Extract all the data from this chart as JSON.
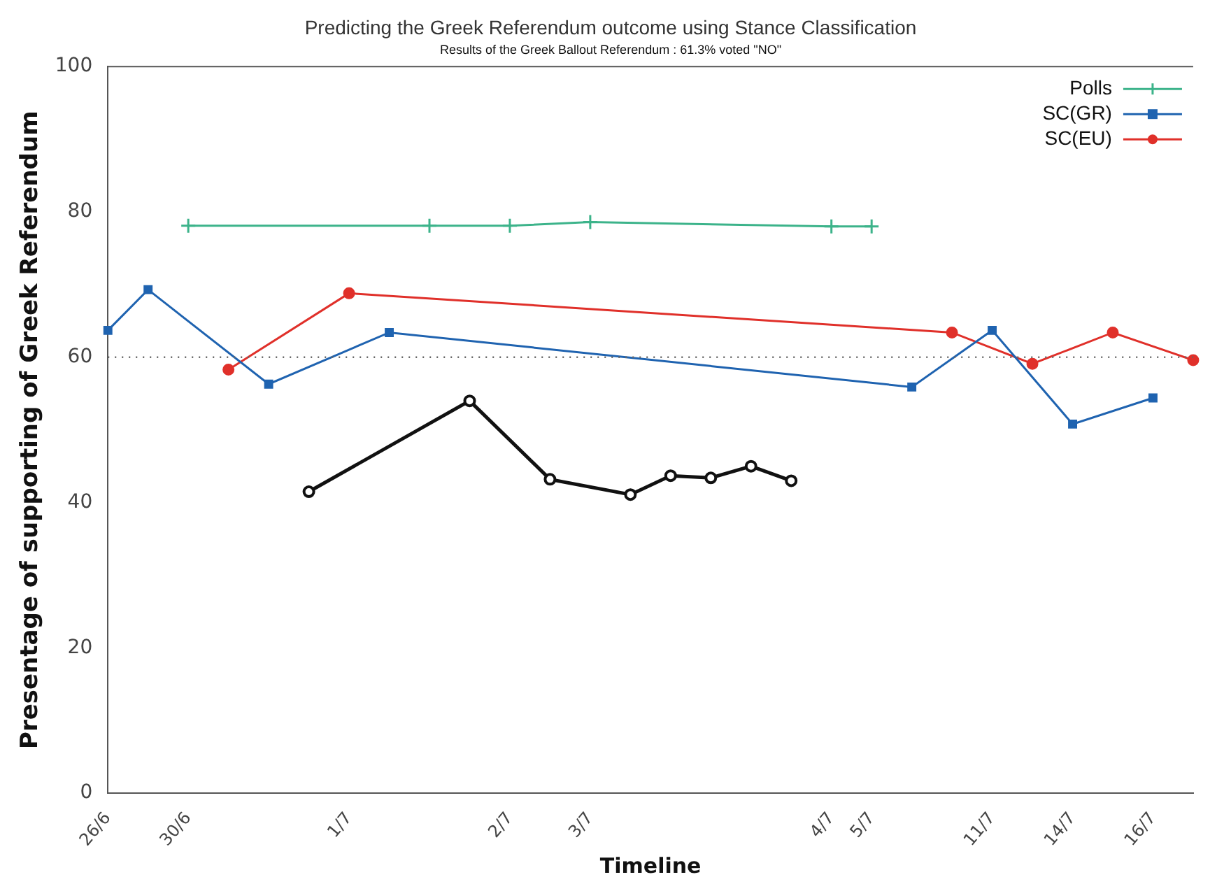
{
  "chart_data": {
    "type": "line",
    "title": "Predicting the Greek Referendum outcome using Stance Classification",
    "subtitle": "Results of the Greek Ballout Referendum : 61.3% voted \"NO\"",
    "xlabel": "Timeline",
    "ylabel": "Presentage of supporting of Greek Referendum",
    "categories": [
      "26/6",
      null,
      "30/6",
      null,
      null,
      null,
      "1/7",
      null,
      null,
      null,
      "2/7",
      null,
      "3/7",
      null,
      null,
      null,
      null,
      null,
      "4/7",
      "5/7",
      null,
      null,
      "11/7",
      null,
      "14/7",
      null,
      "16/7",
      null
    ],
    "series": [
      {
        "name": "Polls",
        "color": "#3cb38a",
        "marker": "cross",
        "values": [
          null,
          null,
          78.1,
          null,
          null,
          null,
          null,
          null,
          78.1,
          null,
          78.1,
          null,
          78.6,
          null,
          null,
          null,
          null,
          null,
          78.0,
          78.0,
          null,
          null,
          null,
          null,
          null,
          null,
          null,
          null
        ]
      },
      {
        "color": "#111111",
        "marker": "circle",
        "values": [
          null,
          null,
          null,
          null,
          null,
          41.5,
          null,
          null,
          null,
          54.0,
          null,
          43.2,
          null,
          41.1,
          43.7,
          43.4,
          45.0,
          43.0,
          null,
          null,
          null,
          null,
          null,
          null,
          null,
          null,
          null,
          null
        ]
      },
      {
        "name": "SC(GR)",
        "color": "#1f63b0",
        "marker": "square",
        "values": [
          63.7,
          69.3,
          null,
          null,
          56.3,
          null,
          null,
          63.4,
          null,
          null,
          null,
          null,
          null,
          null,
          null,
          null,
          null,
          null,
          null,
          null,
          55.9,
          null,
          63.7,
          null,
          50.8,
          null,
          54.4,
          null
        ]
      },
      {
        "name": "SC(EU)",
        "color": "#e0302a",
        "marker": "circle",
        "values": [
          null,
          null,
          null,
          58.3,
          null,
          null,
          68.8,
          null,
          null,
          null,
          null,
          null,
          null,
          null,
          null,
          null,
          null,
          null,
          null,
          null,
          null,
          63.4,
          null,
          59.1,
          null,
          63.4,
          null,
          59.6
        ]
      }
    ],
    "ylim": [
      0,
      100
    ],
    "yticks": [
      0,
      20,
      40,
      60,
      80,
      100
    ],
    "grid": false,
    "legend": "top right",
    "ref_lines": [
      {
        "axis": "y",
        "value": 60,
        "color": "#666666",
        "line_style": "dotted"
      }
    ]
  }
}
